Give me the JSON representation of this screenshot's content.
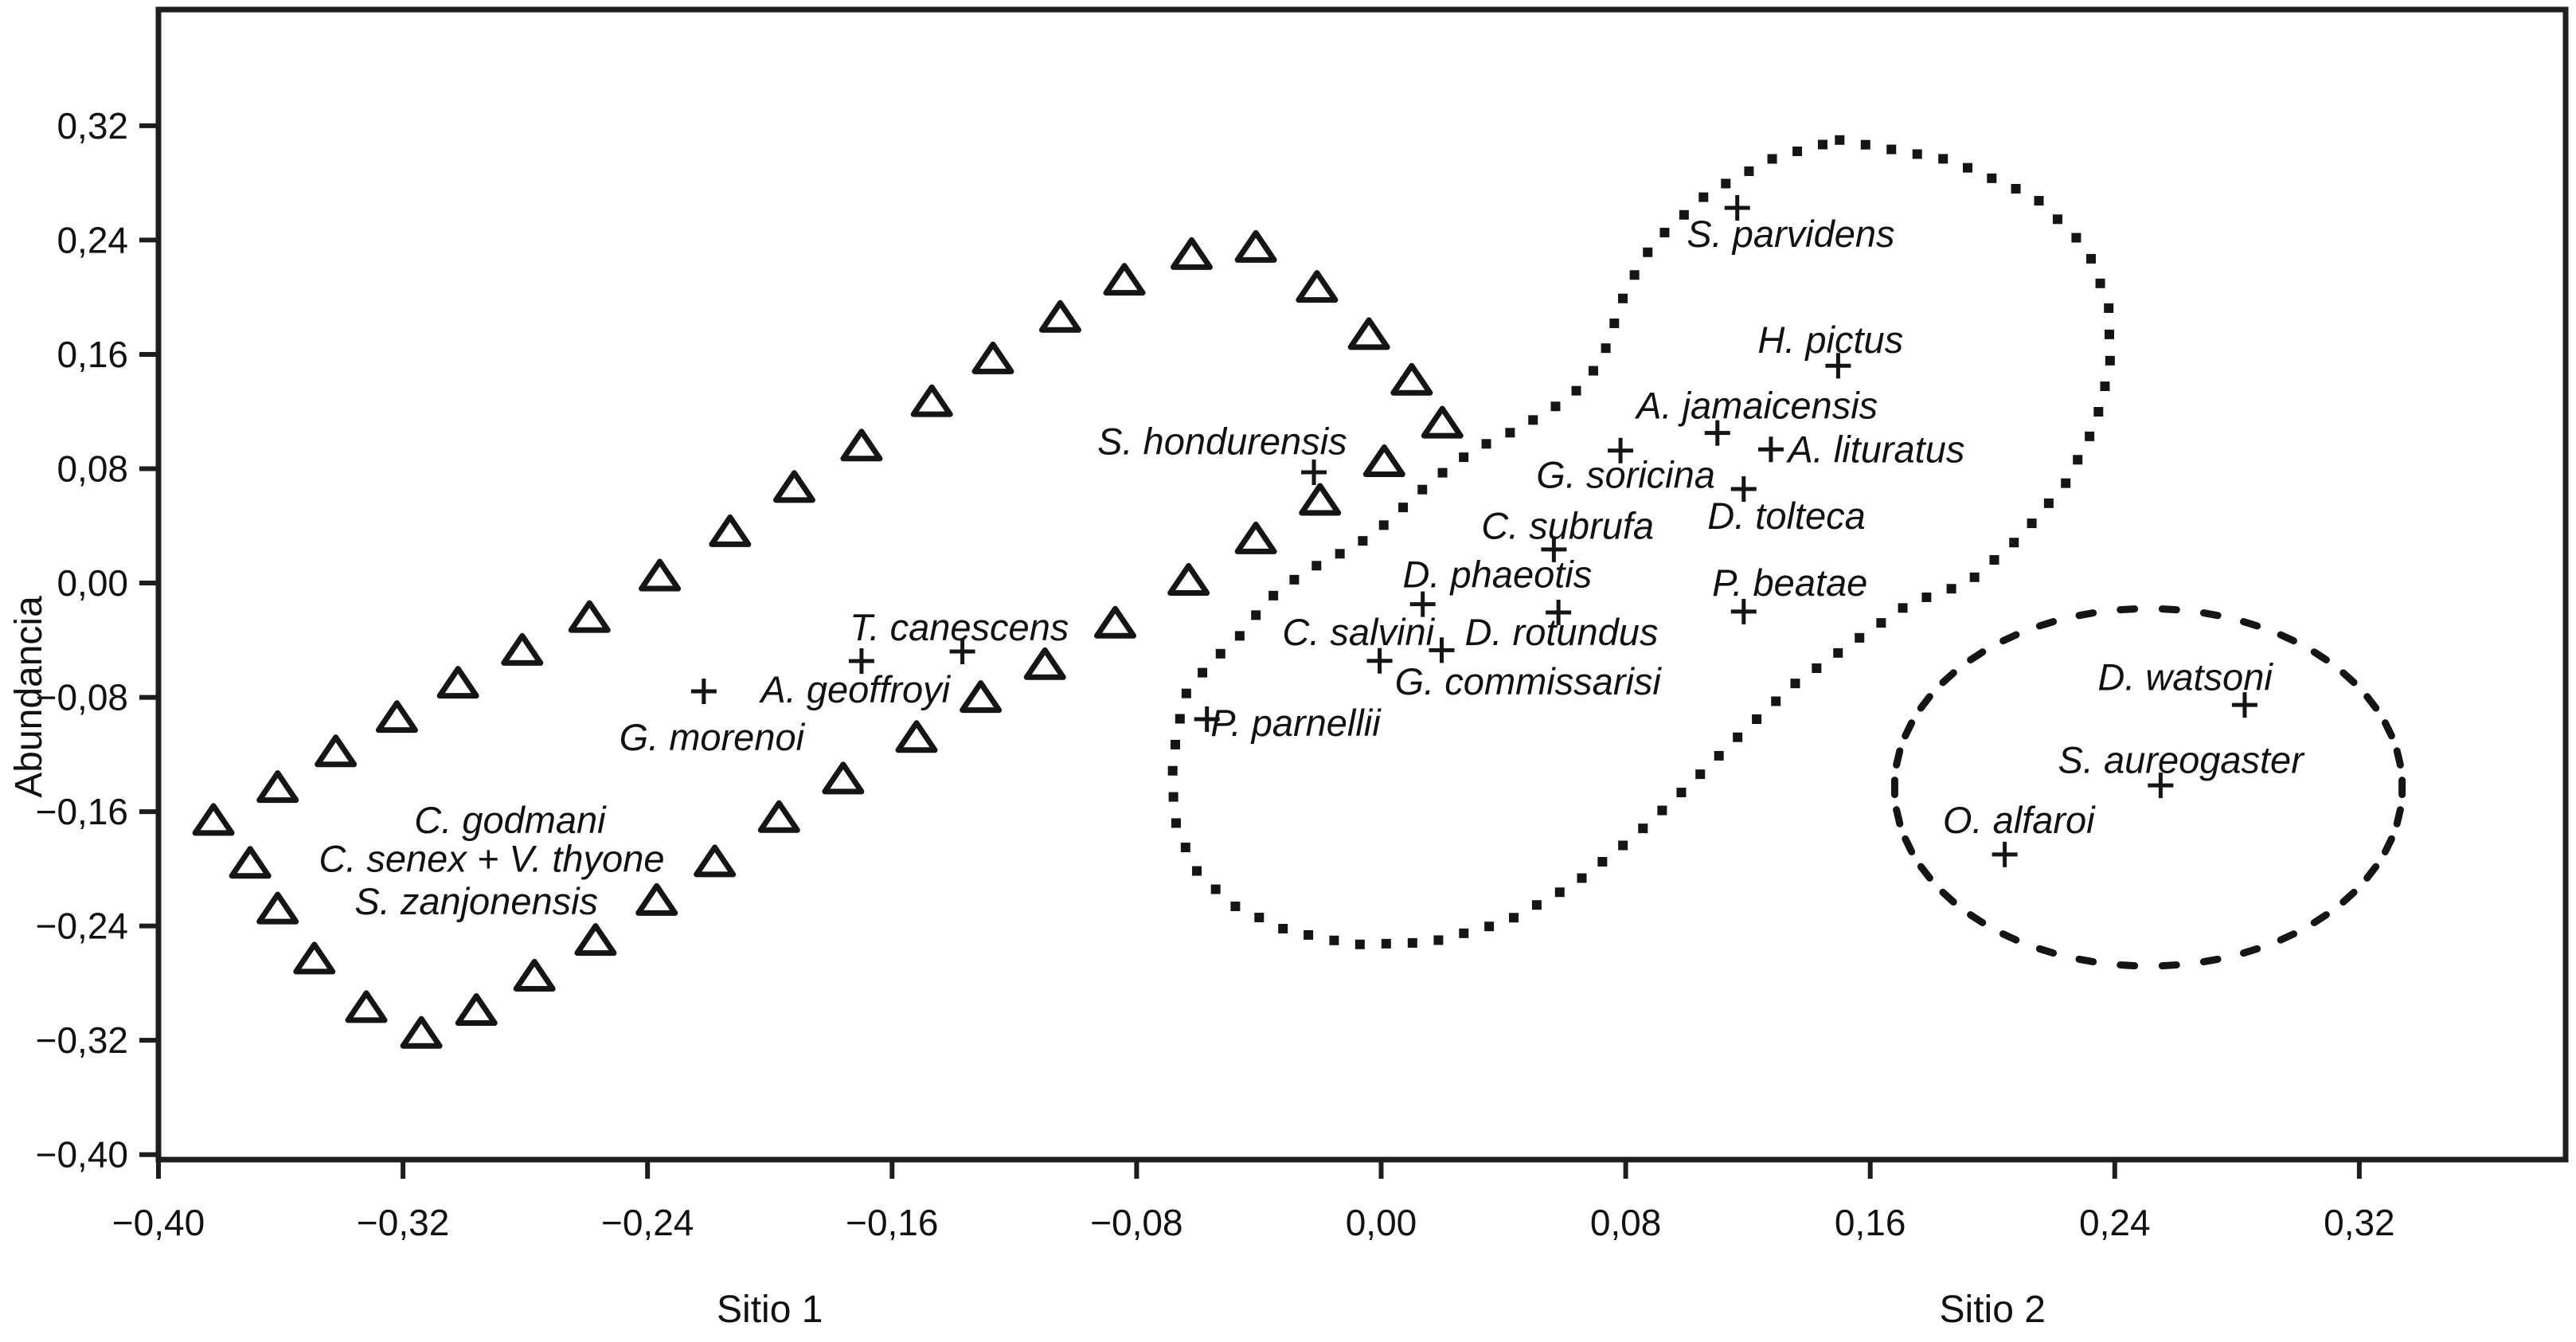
{
  "figure_title": "",
  "colors": {
    "ink": "#151515",
    "axis": "#1e1e1e",
    "background": "#ffffff"
  },
  "chart_data": {
    "type": "scatter",
    "subtype": "ordination-abundance-plot",
    "ylabel": "Abundancia",
    "xlabel": "",
    "xlim": [
      -0.4,
      0.3875
    ],
    "ylim": [
      -0.4035,
      0.4013
    ],
    "grid": false,
    "legend": null,
    "y_ticks": [
      {
        "label": "0,32",
        "v": 0.32
      },
      {
        "label": "0,24",
        "v": 0.24
      },
      {
        "label": "0,16",
        "v": 0.16
      },
      {
        "label": "0,08",
        "v": 0.08
      },
      {
        "label": "0,00",
        "v": 0.0
      },
      {
        "label": "−0,08",
        "v": -0.08
      },
      {
        "label": "−0,16",
        "v": -0.16
      },
      {
        "label": "−0,24",
        "v": -0.24
      },
      {
        "label": "−0,32",
        "v": -0.32
      },
      {
        "label": "−0,40",
        "v": -0.4
      }
    ],
    "x_ticks": [
      {
        "label": "−0,40",
        "v": -0.4
      },
      {
        "label": "−0,32",
        "v": -0.32
      },
      {
        "label": "−0,24",
        "v": -0.24
      },
      {
        "label": "−0,16",
        "v": -0.16
      },
      {
        "label": "−0,08",
        "v": -0.08
      },
      {
        "label": "0,00",
        "v": 0.0
      },
      {
        "label": "0,08",
        "v": 0.08
      },
      {
        "label": "0,16",
        "v": 0.16
      },
      {
        "label": "0,24",
        "v": 0.24
      },
      {
        "label": "0,32",
        "v": 0.32
      }
    ],
    "site_labels": [
      {
        "label": "Sitio 1",
        "x": -0.2
      },
      {
        "label": "Sitio 2",
        "x": 0.2
      }
    ],
    "species": [
      {
        "name": "S. parvidens",
        "label_x": 0.134,
        "label_y": 0.244,
        "plus_x": 0.1165,
        "plus_y": 0.2625
      },
      {
        "name": "H. pictus",
        "label_x": 0.147,
        "label_y": 0.17,
        "plus_x": 0.1495,
        "plus_y": 0.152
      },
      {
        "name": "A. jamaicensis",
        "label_x": 0.123,
        "label_y": 0.124,
        "plus_x": 0.11,
        "plus_y": 0.105
      },
      {
        "name": "A. lituratus",
        "label_x": 0.162,
        "label_y": 0.0935,
        "plus_x": 0.1275,
        "plus_y": 0.0935
      },
      {
        "name": "G. soricina",
        "label_x": 0.08,
        "label_y": 0.0755,
        "plus_x": 0.0783,
        "plus_y": 0.0927
      },
      {
        "name": "D. tolteca",
        "label_x": 0.1326,
        "label_y": 0.0468,
        "plus_x": 0.1186,
        "plus_y": 0.0658
      },
      {
        "name": "C. subrufa",
        "label_x": 0.061,
        "label_y": 0.04,
        "plus_x": 0.0565,
        "plus_y": 0.0235
      },
      {
        "name": "D. phaeotis",
        "label_x": 0.038,
        "label_y": 0.006,
        "plus_x": 0.0136,
        "plus_y": -0.0148
      },
      {
        "name": "P. beatae",
        "label_x": 0.1337,
        "label_y": 0.0,
        "plus_x": 0.1186,
        "plus_y": -0.02
      },
      {
        "name": "C. salvini",
        "label_x": -0.0075,
        "label_y": -0.0345,
        "plus_x": -0.0005,
        "plus_y": -0.0545
      },
      {
        "name": "D. rotundus",
        "label_x": 0.059,
        "label_y": -0.0345,
        "plus_x": 0.058,
        "plus_y": -0.0206
      },
      {
        "name": "G. commissarisi",
        "label_x": 0.048,
        "label_y": -0.069,
        "plus_x": 0.0198,
        "plus_y": -0.047
      },
      {
        "name": "P. parnellii",
        "label_x": -0.028,
        "label_y": -0.098,
        "plus_x": -0.057,
        "plus_y": -0.0953
      },
      {
        "name": "S. hondurensis",
        "label_x": -0.052,
        "label_y": 0.099,
        "plus_x": -0.022,
        "plus_y": 0.0775
      },
      {
        "name": "T. canescens",
        "label_x": -0.138,
        "label_y": -0.0312,
        "plus_x": -0.137,
        "plus_y": -0.0479
      },
      {
        "name": "A. geoffroyi",
        "label_x": -0.172,
        "label_y": -0.0747,
        "plus_x": -0.17,
        "plus_y": -0.0546
      },
      {
        "name": "G. morenoi",
        "label_x": -0.219,
        "label_y": -0.108,
        "plus_x": -0.2216,
        "plus_y": -0.0758
      },
      {
        "name": "C. godmani",
        "label_x": -0.285,
        "label_y": -0.166,
        "plus_x": null,
        "plus_y": null
      },
      {
        "name": "C. senex + V. thyone",
        "label_x": -0.291,
        "label_y": -0.193,
        "plus_x": null,
        "plus_y": null
      },
      {
        "name": "S. zanjonensis",
        "label_x": -0.296,
        "label_y": -0.223,
        "plus_x": null,
        "plus_y": null
      },
      {
        "name": "D. watsoni",
        "label_x": 0.263,
        "label_y": -0.066,
        "plus_x": 0.2825,
        "plus_y": -0.0853
      },
      {
        "name": "S. aureogaster",
        "label_x": 0.2616,
        "label_y": -0.124,
        "plus_x": 0.255,
        "plus_y": -0.1416
      },
      {
        "name": "O. alfaroi",
        "label_x": 0.2086,
        "label_y": -0.166,
        "plus_x": 0.204,
        "plus_y": -0.19
      }
    ],
    "triangle_chain": {
      "points": [
        [
          -0.382,
          -0.166
        ],
        [
          -0.361,
          -0.143
        ],
        [
          -0.342,
          -0.118
        ],
        [
          -0.322,
          -0.094
        ],
        [
          -0.302,
          -0.07
        ],
        [
          -0.281,
          -0.047
        ],
        [
          -0.259,
          -0.024
        ],
        [
          -0.236,
          0.005
        ],
        [
          -0.213,
          0.036
        ],
        [
          -0.192,
          0.067
        ],
        [
          -0.17,
          0.096
        ],
        [
          -0.147,
          0.127
        ],
        [
          -0.127,
          0.157
        ],
        [
          -0.105,
          0.186
        ],
        [
          -0.084,
          0.212
        ],
        [
          -0.062,
          0.23
        ],
        [
          -0.041,
          0.235
        ],
        [
          -0.021,
          0.207
        ],
        [
          -0.004,
          0.174
        ],
        [
          0.01,
          0.142
        ],
        [
          0.02,
          0.112
        ],
        [
          0.001,
          0.085
        ],
        [
          -0.02,
          0.058
        ],
        [
          -0.041,
          0.031
        ],
        [
          -0.063,
          0.002
        ],
        [
          -0.087,
          -0.028
        ],
        [
          -0.11,
          -0.057
        ],
        [
          -0.131,
          -0.08
        ],
        [
          -0.152,
          -0.108
        ],
        [
          -0.176,
          -0.137
        ],
        [
          -0.197,
          -0.164
        ],
        [
          -0.218,
          -0.195
        ],
        [
          -0.237,
          -0.222
        ],
        [
          -0.257,
          -0.25
        ],
        [
          -0.277,
          -0.275
        ],
        [
          -0.296,
          -0.299
        ],
        [
          -0.314,
          -0.315
        ],
        [
          -0.332,
          -0.297
        ],
        [
          -0.349,
          -0.263
        ],
        [
          -0.361,
          -0.228
        ],
        [
          -0.37,
          -0.196
        ]
      ]
    },
    "dotted_outline": {
      "points": [
        [
          0.15,
          0.31
        ],
        [
          0.186,
          0.296
        ],
        [
          0.214,
          0.27
        ],
        [
          0.231,
          0.234
        ],
        [
          0.238,
          0.194
        ],
        [
          0.2385,
          0.152
        ],
        [
          0.2335,
          0.11
        ],
        [
          0.224,
          0.07
        ],
        [
          0.209,
          0.032
        ],
        [
          0.192,
          0.0
        ],
        [
          0.173,
          -0.014
        ],
        [
          0.154,
          -0.042
        ],
        [
          0.135,
          -0.071
        ],
        [
          0.118,
          -0.105
        ],
        [
          0.101,
          -0.141
        ],
        [
          0.083,
          -0.177
        ],
        [
          0.063,
          -0.211
        ],
        [
          0.041,
          -0.237
        ],
        [
          0.016,
          -0.2515
        ],
        [
          -0.009,
          -0.253
        ],
        [
          -0.031,
          -0.243
        ],
        [
          -0.049,
          -0.225
        ],
        [
          -0.061,
          -0.2
        ],
        [
          -0.067,
          -0.17
        ],
        [
          -0.0685,
          -0.138
        ],
        [
          -0.067,
          -0.106
        ],
        [
          -0.064,
          -0.078
        ],
        [
          -0.056,
          -0.056
        ],
        [
          -0.047,
          -0.039
        ],
        [
          -0.042,
          -0.025
        ],
        [
          -0.036,
          -0.01
        ],
        [
          -0.028,
          0.003
        ],
        [
          -0.019,
          0.015
        ],
        [
          -0.012,
          0.022
        ],
        [
          -0.004,
          0.032
        ],
        [
          0.004,
          0.046
        ],
        [
          0.01,
          0.059
        ],
        [
          0.016,
          0.07
        ],
        [
          0.024,
          0.084
        ],
        [
          0.033,
          0.096
        ],
        [
          0.045,
          0.108
        ],
        [
          0.062,
          0.13
        ],
        [
          0.072,
          0.155
        ],
        [
          0.076,
          0.18
        ],
        [
          0.08,
          0.205
        ],
        [
          0.089,
          0.238
        ],
        [
          0.107,
          0.273
        ],
        [
          0.129,
          0.298
        ]
      ]
    },
    "dashed_ellipse": {
      "cx": 0.251,
      "cy": -0.143,
      "rx": 0.083,
      "ry": 0.125
    }
  }
}
